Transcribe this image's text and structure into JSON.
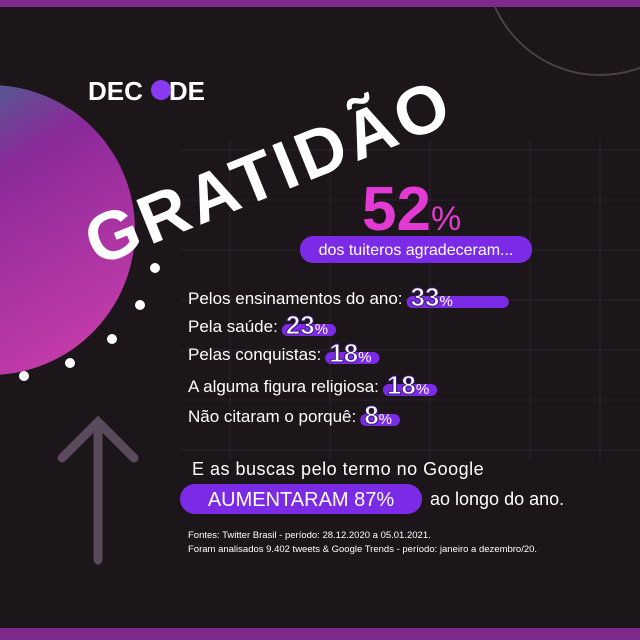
{
  "logo": {
    "start": "DEC",
    "end": "DE"
  },
  "title": "GRATIDÃO",
  "headline": {
    "value": 52,
    "unit": "%",
    "caption": "dos tuiteros agradeceram..."
  },
  "reasons": [
    {
      "label": "Pelos ensinamentos do ano:",
      "value": 33,
      "unit": "%"
    },
    {
      "label": "Pela saúde:",
      "value": 23,
      "unit": "%"
    },
    {
      "label": "Pelas conquistas:",
      "value": 18,
      "unit": "%"
    },
    {
      "label": "A alguma figura religiosa:",
      "value": 18,
      "unit": "%"
    },
    {
      "label": "Não citaram o porquê:",
      "value": 8,
      "unit": "%"
    }
  ],
  "google": {
    "intro": "E as buscas pelo termo no Google",
    "highlight": "AUMENTARAM 87%",
    "rest": "ao longo do ano."
  },
  "sources": [
    "Fontes: Twitter Brasil - período: 28.12.2020 a 05.01.2021.",
    "Foram analisados 9.402 tweets & Google Trends - período: janeiro a dezembro/20."
  ]
}
